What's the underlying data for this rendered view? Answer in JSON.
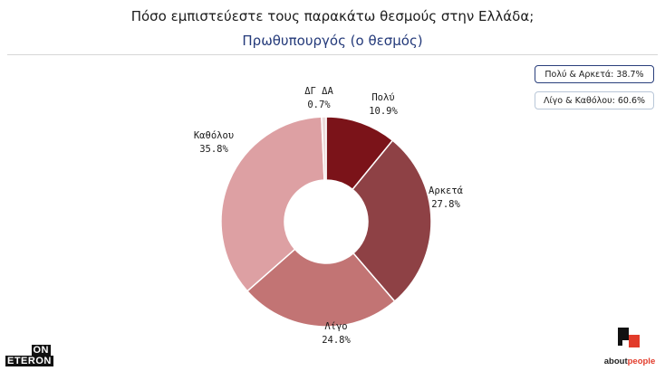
{
  "header": {
    "title": "Πόσο εμπιστεύεστε τους παρακάτω θεσμούς στην Ελλάδα;",
    "subtitle": "Πρωθυπουργός (ο θεσμός)"
  },
  "summary": [
    {
      "label": "Πολύ & Αρκετά: 38.7%"
    },
    {
      "label": "Λίγο & Καθόλου: 60.6%"
    }
  ],
  "chart_data": {
    "type": "pie",
    "donut": true,
    "title": "Πρωθυπουργός (ο θεσμός)",
    "slices": [
      {
        "label": "Πολύ",
        "value": 10.9,
        "display": "10.9%",
        "color": "#7b1319"
      },
      {
        "label": "Αρκετά",
        "value": 27.8,
        "display": "27.8%",
        "color": "#8e4145"
      },
      {
        "label": "Λίγο",
        "value": 24.8,
        "display": "24.8%",
        "color": "#c27474"
      },
      {
        "label": "Καθόλου",
        "value": 35.8,
        "display": "35.8%",
        "color": "#dda0a3"
      },
      {
        "label": "ΔΓ ΔΑ",
        "value": 0.7,
        "display": "0.7%",
        "color": "#ecd9d9"
      }
    ]
  },
  "logos": {
    "left_top": "ON",
    "left_bottom": "ETERON",
    "right_brand_a": "about",
    "right_brand_b": "people"
  }
}
